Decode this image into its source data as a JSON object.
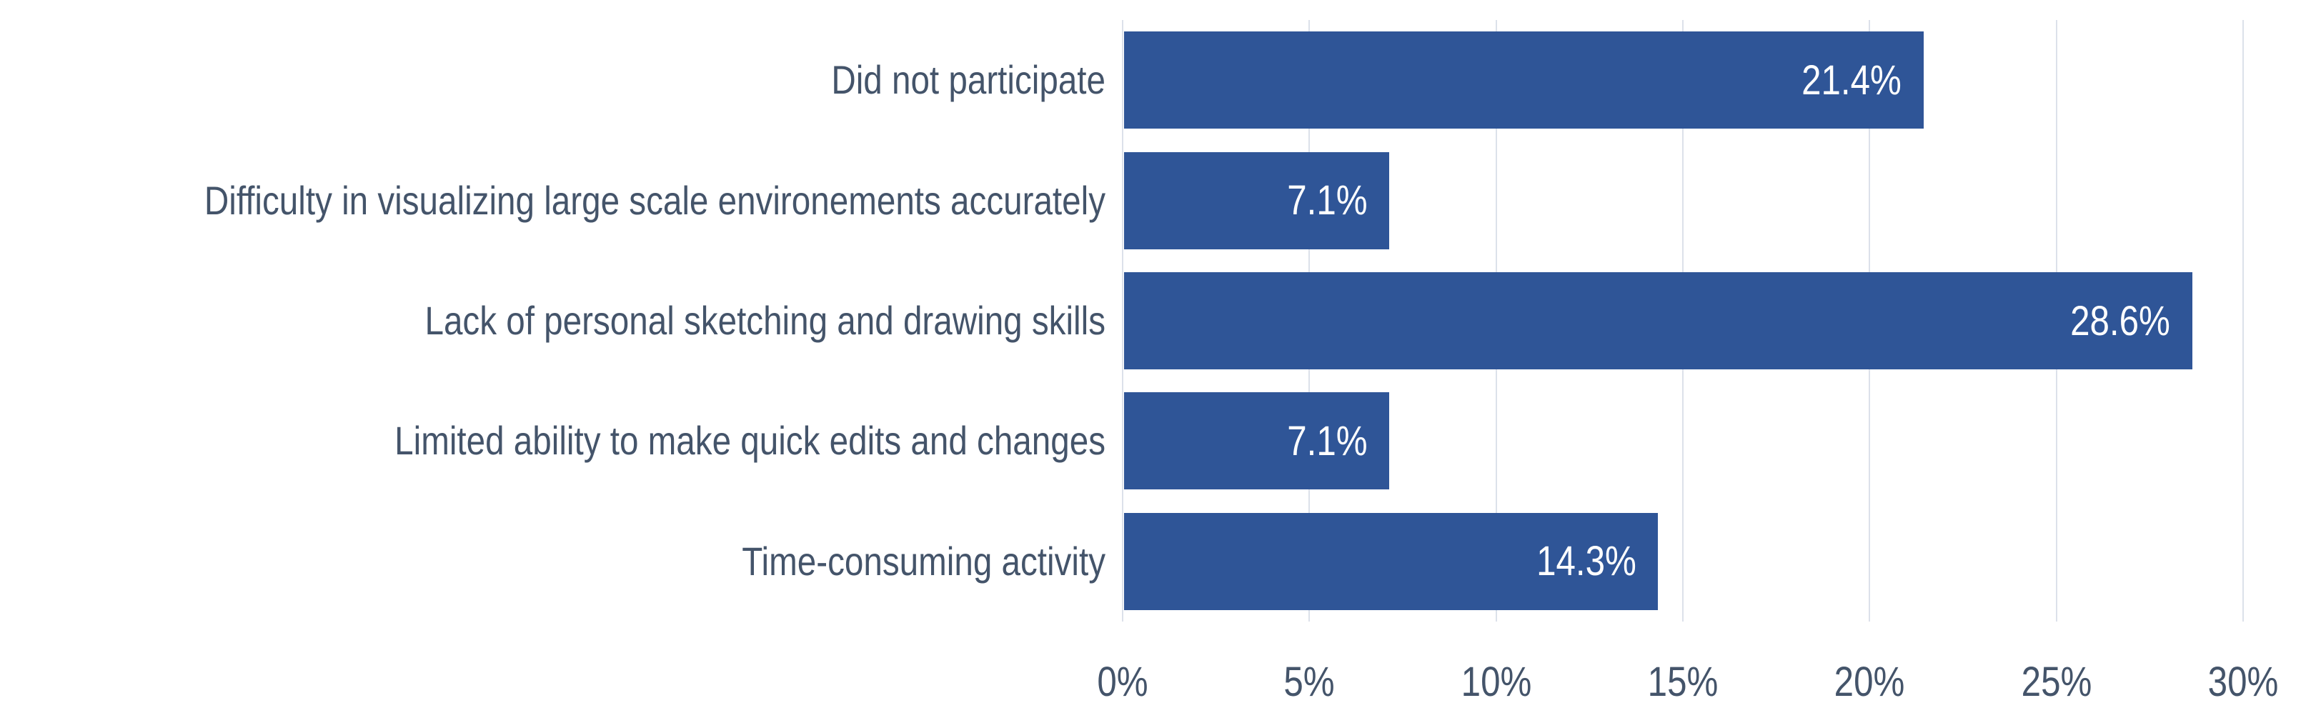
{
  "chart_data": {
    "type": "bar",
    "orientation": "horizontal",
    "title": "",
    "categories": [
      "Did not participate",
      "Difficulty in visualizing large scale environements accurately",
      "Lack of personal sketching and drawing skills",
      "Limited ability to make quick edits and changes",
      "Time-consuming activity"
    ],
    "values": [
      21.4,
      7.1,
      28.6,
      7.1,
      14.3
    ],
    "data_labels": [
      "21.4%",
      "7.1%",
      "28.6%",
      "7.1%",
      "14.3%"
    ],
    "xlabel": "",
    "ylabel": "",
    "xlim": [
      0,
      30
    ],
    "x_tick_values": [
      0,
      5,
      10,
      15,
      20,
      25,
      30
    ],
    "x_ticks": [
      "0%",
      "5%",
      "10%",
      "15%",
      "20%",
      "25%",
      "30%"
    ],
    "grid": true,
    "legend": false,
    "colors": {
      "bar": "#2F5597",
      "label_text": "#44546A",
      "data_label_text": "#FFFFFF",
      "gridline": "#DCE1EA",
      "background": "#FFFFFF"
    }
  }
}
